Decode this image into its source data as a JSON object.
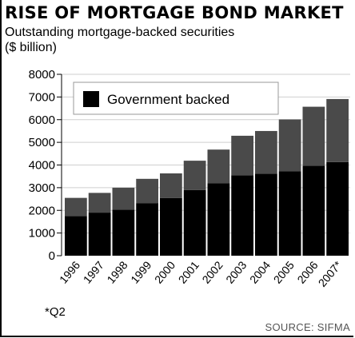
{
  "header": {
    "title": "RISE OF MORTGAGE BOND MARKET",
    "subtitle_line1": "Outstanding mortgage-backed securities",
    "subtitle_line2": "($ billion)"
  },
  "footnote": "*Q2",
  "source": "SOURCE: SIFMA",
  "colors": {
    "government": "#000000",
    "other": "#4a4a4a",
    "grid": "#cfcfcf",
    "legend_bg": "#ffffff"
  },
  "chart_data": {
    "type": "bar",
    "stacked": true,
    "categories": [
      "1996",
      "1997",
      "1998",
      "1999",
      "2000",
      "2001",
      "2002",
      "2003",
      "2004",
      "2005",
      "2006",
      "2007*"
    ],
    "series": [
      {
        "name": "Government backed",
        "values": [
          1750,
          1900,
          2030,
          2320,
          2540,
          2900,
          3200,
          3550,
          3620,
          3720,
          3970,
          4130
        ]
      },
      {
        "values": [
          800,
          870,
          970,
          1070,
          1090,
          1290,
          1480,
          1740,
          1880,
          2290,
          2600,
          2780
        ]
      }
    ],
    "yticks": [
      0,
      1000,
      2000,
      3000,
      4000,
      5000,
      6000,
      7000,
      8000
    ],
    "ylim": [
      0,
      8000
    ],
    "grid": true,
    "legend": "top-left"
  }
}
